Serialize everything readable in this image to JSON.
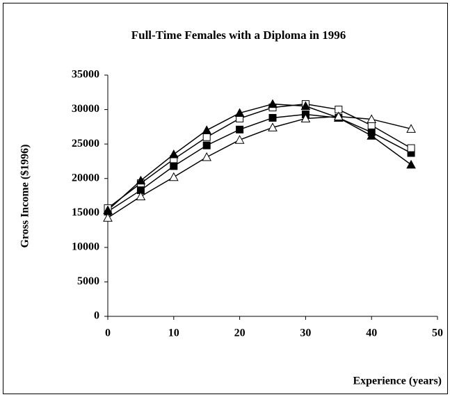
{
  "chart_data": {
    "type": "line",
    "title": "Full-Time Females with a Diploma in 1996",
    "xlabel": "Experience (years)",
    "ylabel": "Gross Income ($1996)",
    "x": [
      0,
      5,
      10,
      15,
      20,
      25,
      30,
      35,
      40,
      46
    ],
    "series": [
      {
        "color": "#000000",
        "marker": "filled-square",
        "values": [
          15200,
          18300,
          21800,
          24800,
          27100,
          28800,
          29300,
          28800,
          26700,
          23700
        ]
      },
      {
        "color": "#000000",
        "marker": "open-square",
        "values": [
          15700,
          19300,
          22800,
          26000,
          28700,
          30300,
          30800,
          30000,
          27700,
          24400
        ]
      },
      {
        "color": "#000000",
        "marker": "filled-triangle",
        "values": [
          15400,
          19700,
          23500,
          27000,
          29500,
          30800,
          30500,
          28800,
          26200,
          22000
        ]
      },
      {
        "color": "#000000",
        "marker": "open-triangle",
        "values": [
          14300,
          17400,
          20200,
          23100,
          25600,
          27400,
          28700,
          29000,
          28600,
          27200
        ]
      }
    ],
    "xlim": [
      0,
      50
    ],
    "xticks": [
      0,
      10,
      20,
      30,
      40,
      50
    ],
    "ylim": [
      0,
      35000
    ],
    "yticks": [
      0,
      5000,
      10000,
      15000,
      20000,
      25000,
      30000,
      35000
    ],
    "grid": false
  }
}
